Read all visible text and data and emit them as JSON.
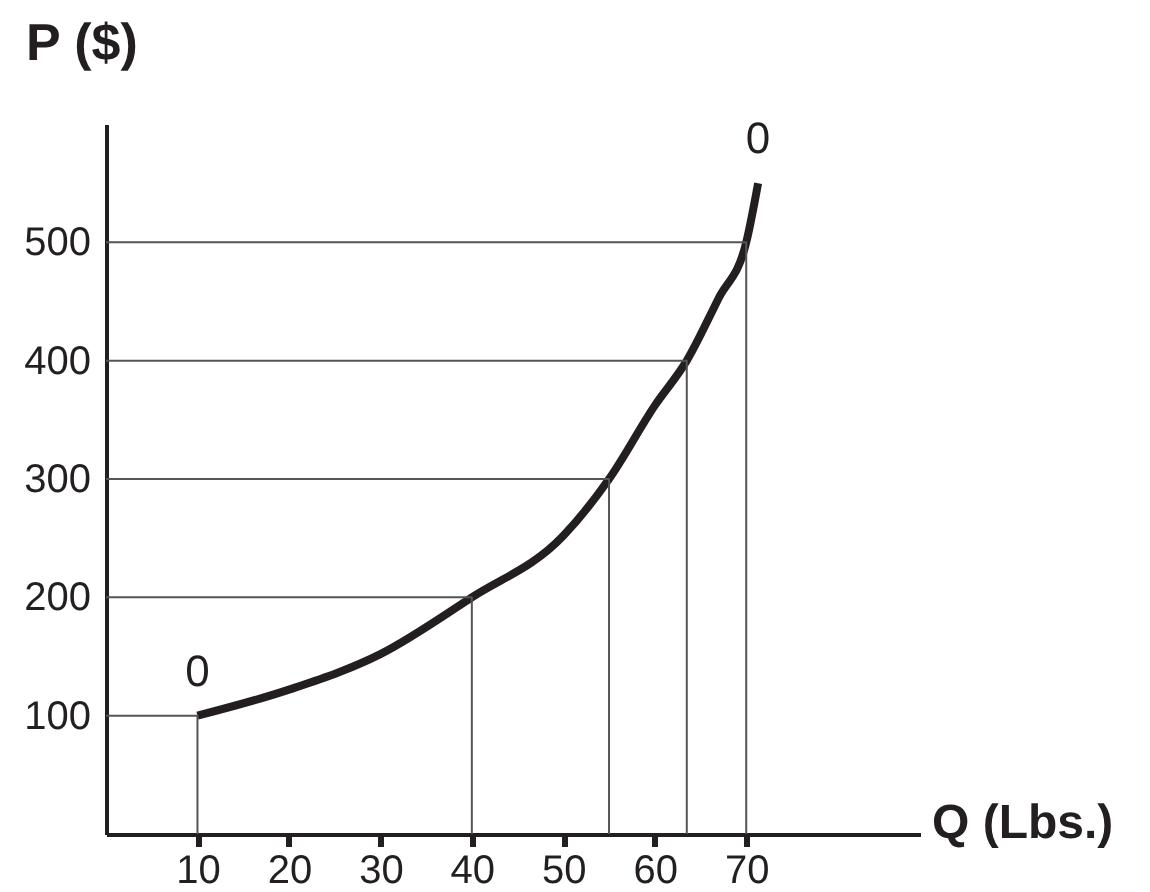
{
  "chart_data": {
    "type": "line",
    "xlabel": "Q (Lbs.)",
    "ylabel": "P ($)",
    "xlim": [
      0,
      89
    ],
    "ylim": [
      0,
      600
    ],
    "xticks": [
      10,
      20,
      30,
      40,
      50,
      60,
      70
    ],
    "yticks": [
      100,
      200,
      300,
      400,
      500
    ],
    "grid": false,
    "marker": "none",
    "line_style": "solid",
    "series": [
      {
        "color": "#231f20",
        "x": [
          10,
          20,
          30,
          40,
          50,
          55,
          60,
          63.5,
          67,
          70,
          71.3
        ],
        "values": [
          100,
          122,
          152,
          200,
          252,
          300,
          362,
          400,
          453,
          500,
          550
        ]
      },
      {
        "type": "line",
        "color": "#555555",
        "x": [
          0,
          10,
          10
        ],
        "values": [
          100,
          100,
          0
        ]
      },
      {
        "type": "line",
        "color": "#555555",
        "x": [
          0,
          40,
          40
        ],
        "values": [
          200,
          200,
          0
        ]
      },
      {
        "type": "line",
        "color": "#555555",
        "x": [
          0,
          55,
          55
        ],
        "values": [
          300,
          300,
          0
        ]
      },
      {
        "type": "line",
        "color": "#555555",
        "x": [
          0,
          63.5,
          63.5
        ],
        "values": [
          400,
          400,
          0
        ]
      },
      {
        "type": "line",
        "color": "#555555",
        "x": [
          0,
          70,
          70
        ],
        "values": [
          500,
          500,
          0
        ]
      }
    ],
    "annotations": [
      {
        "text": "0",
        "x": 10,
        "y": 100
      },
      {
        "text": "0",
        "x": 71.3,
        "y": 550
      }
    ]
  }
}
